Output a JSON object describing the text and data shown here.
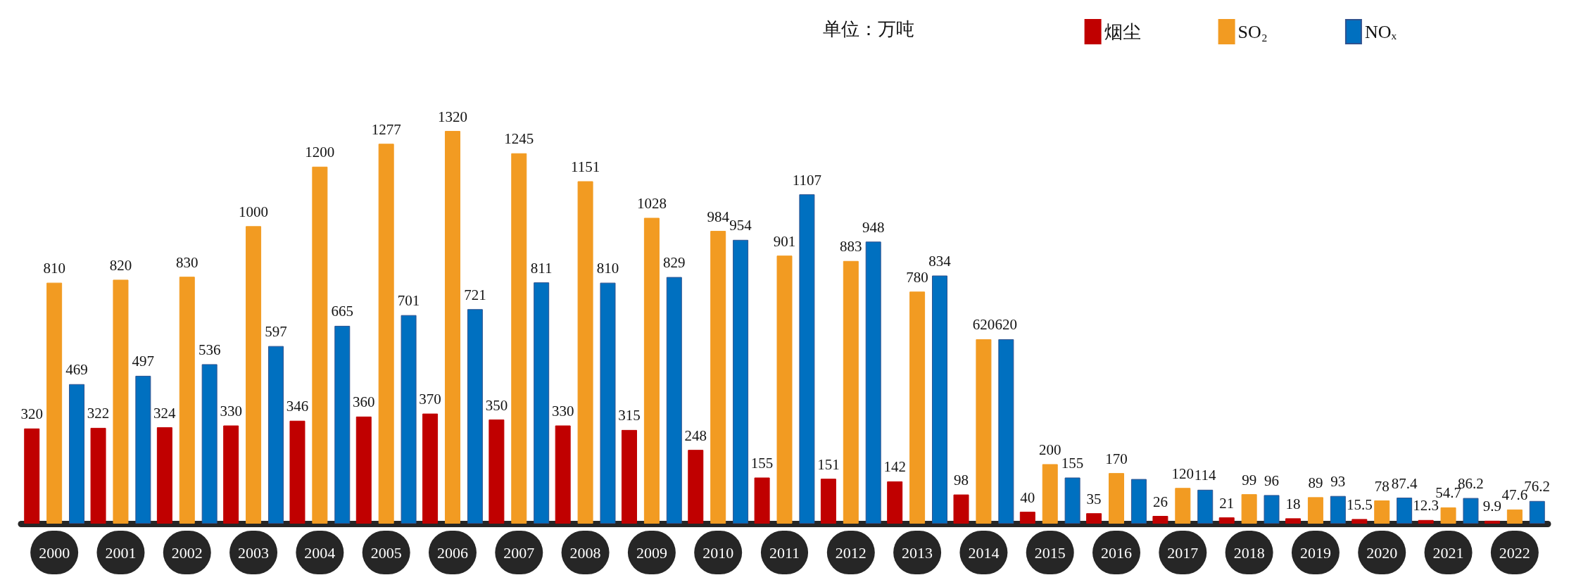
{
  "chart_data": {
    "type": "bar",
    "annotations": [
      "单位：万吨"
    ],
    "legend": "top right",
    "grid": false,
    "categories": [
      "2000",
      "2001",
      "2002",
      "2003",
      "2004",
      "2005",
      "2006",
      "2007",
      "2008",
      "2009",
      "2010",
      "2011",
      "2012",
      "2013",
      "2014",
      "2015",
      "2016",
      "2017",
      "2018",
      "2019",
      "2020",
      "2021",
      "2022"
    ],
    "series": [
      {
        "name": "烟尘",
        "color": "#c00000",
        "values": [
          320,
          322,
          324,
          330,
          346,
          360,
          370,
          350,
          330,
          315,
          248,
          155,
          151,
          142,
          98,
          40,
          35,
          26,
          21,
          18,
          15.5,
          12.3,
          9.9
        ],
        "value_labels": [
          "320",
          "322",
          "324",
          "330",
          "346",
          "360",
          "370",
          "350",
          "330",
          "315",
          "248",
          "155",
          "151",
          "142",
          "98",
          "40",
          "35",
          "26",
          "21",
          "18",
          "15.5",
          "12.3",
          "9.9"
        ]
      },
      {
        "name": "SO₂",
        "color": "#f29b22",
        "values": [
          810,
          820,
          830,
          1000,
          1200,
          1277,
          1320,
          1245,
          1151,
          1028,
          984,
          901,
          883,
          780,
          620,
          200,
          170,
          120,
          99,
          89,
          78,
          54.7,
          47.6
        ],
        "value_labels": [
          "810",
          "820",
          "830",
          "1000",
          "1200",
          "1277",
          "1320",
          "1245",
          "1151",
          "1028",
          "984",
          "901",
          "883",
          "780",
          "620",
          "200",
          "170",
          "120",
          "99",
          "89",
          "78",
          "54.7",
          "47.6"
        ]
      },
      {
        "name": "NOₓ",
        "color": "#0070c0",
        "values": [
          469,
          497,
          536,
          597,
          665,
          701,
          721,
          811,
          810,
          829,
          954,
          1107,
          948,
          834,
          620,
          155,
          150,
          114,
          96,
          93,
          87.4,
          86.2,
          76.2
        ],
        "value_labels": [
          "469",
          "497",
          "536",
          "597",
          "665",
          "701",
          "721",
          "811",
          "810",
          "829",
          "954",
          "1107",
          "948",
          "834",
          "620",
          "155",
          null,
          "114",
          "96",
          "93",
          "87.4",
          "86.2",
          "76.2"
        ]
      }
    ]
  }
}
